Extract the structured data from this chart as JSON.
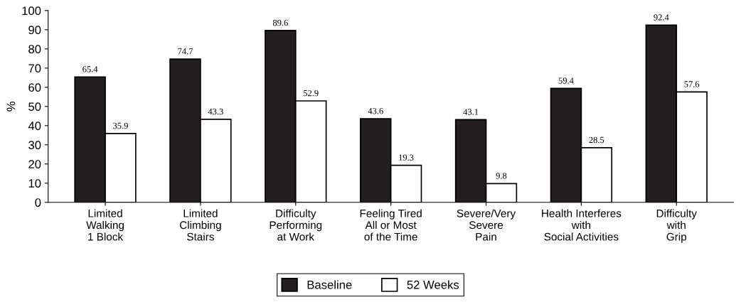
{
  "chart_data": {
    "type": "bar",
    "ylabel": "%",
    "categories": [
      "Limited\nWalking\n1 Block",
      "Limited\nClimbing\nStairs",
      "Difficulty\nPerforming\nat Work",
      "Feeling Tired\nAll or Most\nof the Time",
      "Severe/Very\nSevere\nPain",
      "Health Interferes\nwith\nSocial Activities",
      "Difficulty\nwith\nGrip"
    ],
    "series": [
      {
        "name": "Baseline",
        "color": "#231f20",
        "values": [
          65.4,
          74.7,
          89.6,
          43.6,
          43.1,
          59.4,
          92.4
        ]
      },
      {
        "name": "52 Weeks",
        "color": "#ffffff",
        "values": [
          35.9,
          43.3,
          52.9,
          19.3,
          9.8,
          28.5,
          57.6
        ]
      }
    ],
    "ylim": [
      0,
      100
    ],
    "yticks": [
      0,
      10,
      20,
      30,
      40,
      50,
      60,
      70,
      80,
      90,
      100
    ],
    "data_labels": true,
    "legend": "bottom",
    "grid": false
  }
}
